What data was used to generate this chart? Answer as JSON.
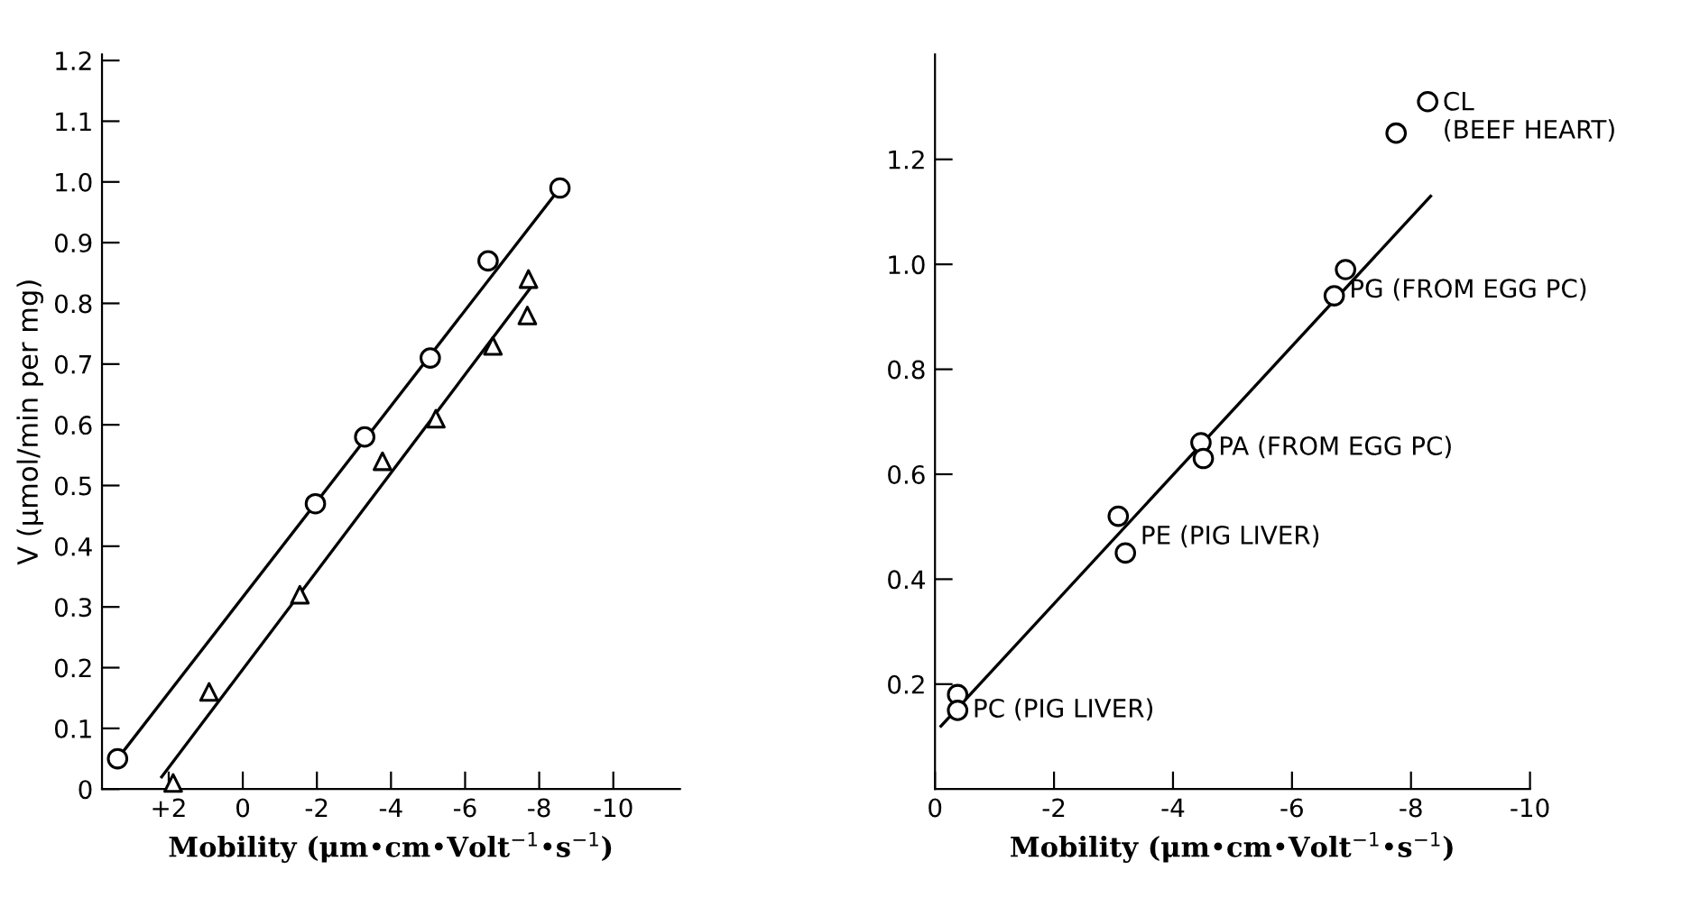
{
  "chart_data": [
    {
      "type": "scatter",
      "xlabel": "Mobility (μm•cm•Volt$^{−1}$•s$^{−1}$)",
      "ylabel": "V (μmol/min per mg)",
      "xlim": [
        3.8,
        -11.8
      ],
      "ylim": [
        0,
        1.21
      ],
      "xticks": [
        {
          "value": 2,
          "label": "+2"
        },
        0,
        -2,
        -4,
        -6,
        -8,
        -10
      ],
      "yticks": [
        0,
        0.1,
        0.2,
        0.3,
        0.4,
        0.5,
        0.6,
        0.7,
        0.8,
        0.9,
        {
          "value": 1.0,
          "label": "1.0"
        },
        1.1,
        1.2
      ],
      "series": [
        {
          "marker": "circle",
          "color": "#000000",
          "x": [
            3.38,
            -1.96,
            -3.29,
            -5.06,
            -6.62,
            -8.56
          ],
          "values": [
            0.05,
            0.47,
            0.58,
            0.71,
            0.87,
            0.99
          ]
        },
        {
          "marker": "triangle",
          "color": "#000000",
          "x": [
            1.88,
            0.91,
            -1.54,
            -3.77,
            -5.21,
            -6.75,
            -7.68,
            -7.71
          ],
          "values": [
            0.01,
            0.16,
            0.32,
            0.54,
            0.61,
            0.73,
            0.78,
            0.84
          ]
        },
        {
          "type": "line",
          "marker": "none",
          "line_style": "solid",
          "color": "#000000",
          "x": [
            3.38,
            -8.56
          ],
          "values": [
            0.05,
            0.99
          ]
        },
        {
          "type": "line",
          "marker": "none",
          "line_style": "solid",
          "color": "#000000",
          "x": [
            2.19,
            -7.82
          ],
          "values": [
            0.02,
            0.83
          ]
        }
      ]
    },
    {
      "type": "scatter",
      "xlabel": "Mobility (μm•cm•Volt$^{−1}$•s$^{−1}$)",
      "xlim": [
        0,
        -10
      ],
      "ylim": [
        0,
        1.4
      ],
      "xticks": [
        0,
        -2,
        -4,
        -6,
        -8,
        -10
      ],
      "yticks": [
        0.2,
        0.4,
        0.6,
        0.8,
        {
          "value": 1.0,
          "label": "1.0"
        },
        1.2
      ],
      "series": [
        {
          "marker": "circle",
          "color": "#000000",
          "x": [
            -0.38,
            -0.38,
            -3.08,
            -3.2,
            -4.47,
            -4.51,
            -6.71,
            -6.9,
            -7.75,
            -8.28
          ],
          "values": [
            0.18,
            0.15,
            0.52,
            0.45,
            0.66,
            0.63,
            0.94,
            0.99,
            1.25,
            1.31
          ]
        },
        {
          "type": "line",
          "marker": "none",
          "line_style": "solid",
          "color": "#000000",
          "x": [
            -0.1,
            -8.33
          ],
          "values": [
            0.12,
            1.13
          ]
        }
      ],
      "annotations": [
        {
          "text": "PC (PIG LIVER)",
          "x": -0.38,
          "y": 0.15
        },
        {
          "text": "PE (PIG LIVER)",
          "x": -3.2,
          "y": 0.48
        },
        {
          "text": "PA (FROM EGG PC)",
          "x": -4.51,
          "y": 0.65
        },
        {
          "text": "PG (FROM EGG PC)",
          "x": -6.71,
          "y": 0.95
        },
        {
          "text": "CL\n(BEEF HEART)",
          "x": -8.28,
          "y": 1.28
        }
      ]
    }
  ]
}
